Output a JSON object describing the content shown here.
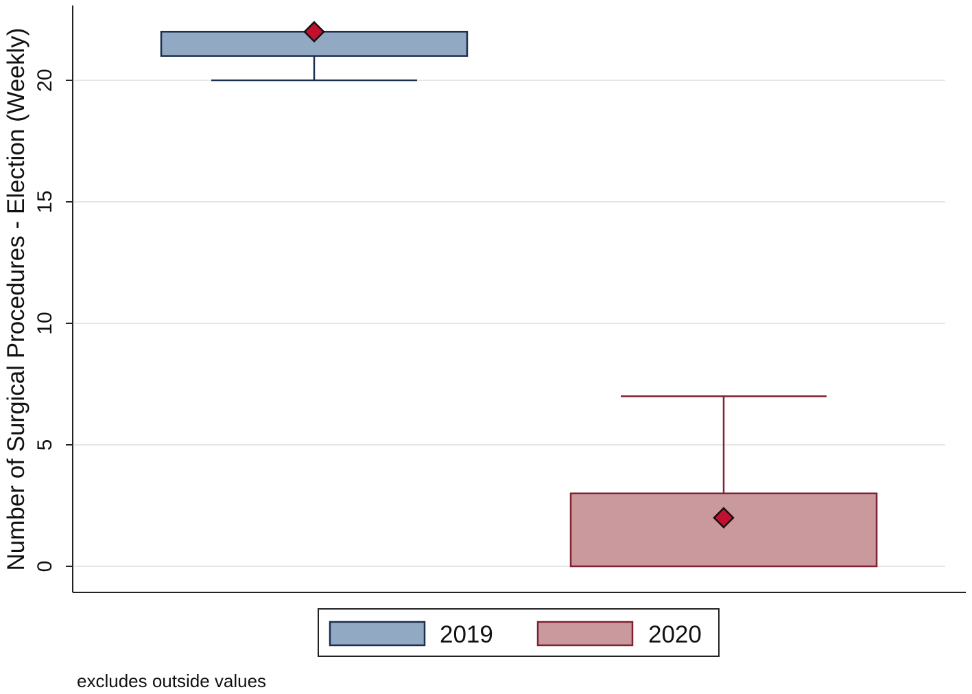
{
  "chart_data": {
    "type": "box",
    "ylabel": "Number of Surgical Procedures - Election (Weekly)",
    "xlabel": "",
    "ylim": [
      -1,
      23
    ],
    "yticks": [
      0,
      5,
      10,
      15,
      20
    ],
    "grid": true,
    "legend_position": "bottom",
    "series": [
      {
        "name": "2019",
        "q1": 21,
        "q3": 22,
        "median": 22,
        "lower_whisker": 20,
        "upper_whisker": 22,
        "mean": 22
      },
      {
        "name": "2020",
        "q1": 0,
        "q3": 3,
        "median": 3,
        "lower_whisker": 0,
        "upper_whisker": 7,
        "mean": 2
      }
    ],
    "note": "excludes outside values"
  },
  "colors": {
    "series_fill": [
      "#91a9c3",
      "#c9999e"
    ],
    "series_stroke": [
      "#1b2f50",
      "#7f2330"
    ],
    "mean_marker": "#c2102f",
    "gridline": "#e6e6e6",
    "axis": "#222222"
  }
}
